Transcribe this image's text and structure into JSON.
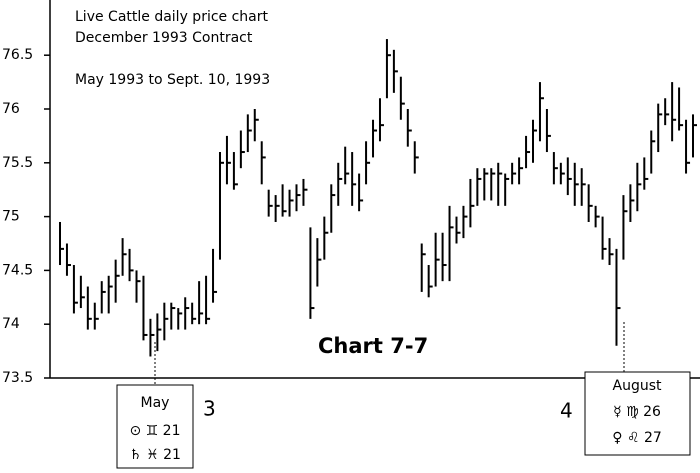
{
  "chart_data": {
    "type": "ohlc",
    "title": "Live Cattle daily price chart",
    "subtitle": "December 1993 Contract",
    "period": "May 1993 to Sept. 10, 1993",
    "label": "Chart 7-7",
    "annotations": [
      {
        "number": "3",
        "lines": [
          "May",
          "⊙ ♊ 21",
          "♄ ♓ 21"
        ]
      },
      {
        "number": "4",
        "lines": [
          "August",
          "☿ ♍ 26",
          "♀ ♌ 27"
        ]
      }
    ],
    "ylim": [
      73.5,
      77.0
    ],
    "yticks": [
      73.5,
      74,
      74.5,
      75,
      75.5,
      76,
      76.5
    ],
    "color": "#000000",
    "series": [
      {
        "high": [
          74.95,
          74.75,
          74.55,
          74.45,
          74.35,
          74.2,
          74.4,
          74.45,
          74.6,
          74.8,
          74.7,
          74.5,
          74.45,
          74.05,
          74.1,
          74.2,
          74.2,
          74.15,
          74.25,
          74.2,
          74.4,
          74.45,
          74.7,
          75.6,
          75.75,
          75.6,
          75.8,
          75.95,
          76.0,
          75.7,
          75.25,
          75.2,
          75.3,
          75.25,
          75.3,
          75.35,
          74.9,
          74.8,
          75.0,
          75.3,
          75.5,
          75.65,
          75.6,
          75.4,
          75.7,
          75.9,
          76.1,
          76.65,
          76.55,
          76.3,
          76.0,
          75.7,
          74.75,
          74.55,
          74.85,
          74.85,
          75.1,
          75.0,
          75.1,
          75.35,
          75.45,
          75.45,
          75.45,
          75.5,
          75.4,
          75.5,
          75.55,
          75.75,
          75.9,
          76.25,
          76.0,
          75.6,
          75.5,
          75.55,
          75.5,
          75.45,
          75.3,
          75.1,
          75.0,
          74.8,
          74.7,
          75.2,
          75.3,
          75.5,
          75.55,
          75.8,
          76.05,
          76.1,
          76.25,
          76.2,
          75.9,
          75.95
        ],
        "low": [
          74.55,
          74.45,
          74.1,
          74.15,
          73.95,
          73.95,
          74.1,
          74.1,
          74.2,
          74.45,
          74.4,
          74.2,
          73.85,
          73.7,
          73.75,
          73.85,
          73.95,
          73.95,
          73.95,
          74.0,
          74.0,
          74.0,
          74.2,
          74.6,
          75.3,
          75.25,
          75.45,
          75.6,
          75.7,
          75.3,
          75.0,
          74.95,
          75.0,
          75.0,
          75.05,
          75.1,
          74.05,
          74.35,
          74.6,
          74.85,
          75.1,
          75.3,
          75.1,
          75.05,
          75.3,
          75.55,
          75.7,
          76.1,
          76.15,
          75.9,
          75.65,
          75.4,
          74.3,
          74.25,
          74.35,
          74.4,
          74.4,
          74.75,
          74.8,
          74.9,
          75.1,
          75.15,
          75.15,
          75.1,
          75.1,
          75.3,
          75.3,
          75.45,
          75.5,
          75.7,
          75.6,
          75.3,
          75.3,
          75.2,
          75.1,
          75.1,
          74.95,
          74.9,
          74.6,
          74.55,
          73.8,
          74.6,
          74.95,
          75.05,
          75.25,
          75.4,
          75.6,
          75.85,
          75.7,
          75.8,
          75.4,
          75.55
        ],
        "close": [
          74.7,
          74.55,
          74.2,
          74.25,
          74.05,
          74.05,
          74.3,
          74.35,
          74.45,
          74.65,
          74.5,
          74.4,
          73.9,
          73.9,
          73.95,
          74.05,
          74.15,
          74.1,
          74.15,
          74.05,
          74.1,
          74.05,
          74.3,
          75.5,
          75.5,
          75.3,
          75.6,
          75.8,
          75.9,
          75.55,
          75.1,
          75.1,
          75.05,
          75.15,
          75.2,
          75.25,
          74.15,
          74.6,
          74.85,
          75.2,
          75.35,
          75.4,
          75.3,
          75.15,
          75.5,
          75.8,
          75.85,
          76.5,
          76.35,
          76.05,
          75.8,
          75.55,
          74.65,
          74.35,
          74.6,
          74.55,
          74.9,
          74.85,
          75.0,
          75.1,
          75.35,
          75.4,
          75.4,
          75.4,
          75.35,
          75.4,
          75.45,
          75.6,
          75.8,
          76.1,
          75.75,
          75.45,
          75.4,
          75.35,
          75.3,
          75.3,
          75.1,
          75.0,
          74.7,
          74.65,
          74.15,
          75.05,
          75.15,
          75.3,
          75.35,
          75.7,
          75.95,
          75.95,
          75.9,
          75.85,
          75.5,
          75.85
        ]
      }
    ]
  }
}
